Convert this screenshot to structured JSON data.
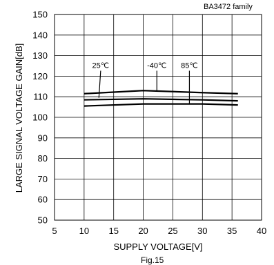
{
  "figure": {
    "family_label": "BA3472 family",
    "caption": "Fig.15"
  },
  "chart_data": {
    "type": "line",
    "xlabel": "SUPPLY VOLTAGE[V]",
    "ylabel": "LARGE  SIGNAL VOLTAGE GAIN[dB]",
    "xlim": [
      5,
      40
    ],
    "ylim": [
      50,
      150
    ],
    "x_ticks": [
      5,
      10,
      15,
      20,
      25,
      30,
      35,
      40
    ],
    "y_ticks": [
      50,
      60,
      70,
      80,
      90,
      100,
      110,
      120,
      130,
      140,
      150
    ],
    "grid": true,
    "series": [
      {
        "name": "-40℃",
        "x": [
          10,
          20,
          30,
          36
        ],
        "y": [
          111.5,
          113,
          112,
          111.5
        ]
      },
      {
        "name": "25℃",
        "x": [
          10,
          20,
          30,
          36
        ],
        "y": [
          108.5,
          109,
          108.5,
          108
        ]
      },
      {
        "name": "85℃",
        "x": [
          10,
          20,
          30,
          36
        ],
        "y": [
          105.5,
          106.5,
          106.5,
          106
        ]
      }
    ],
    "annotations": [
      {
        "text": "25℃",
        "label_x": 12.8,
        "label_y": 124,
        "pointer_to": [
          12.5,
          109.5
        ]
      },
      {
        "text": "-40℃",
        "label_x": 22.3,
        "label_y": 124,
        "pointer_to": [
          22.3,
          112.7
        ]
      },
      {
        "text": "85℃",
        "label_x": 27.8,
        "label_y": 124,
        "pointer_to": [
          27.8,
          106.4
        ]
      }
    ]
  }
}
